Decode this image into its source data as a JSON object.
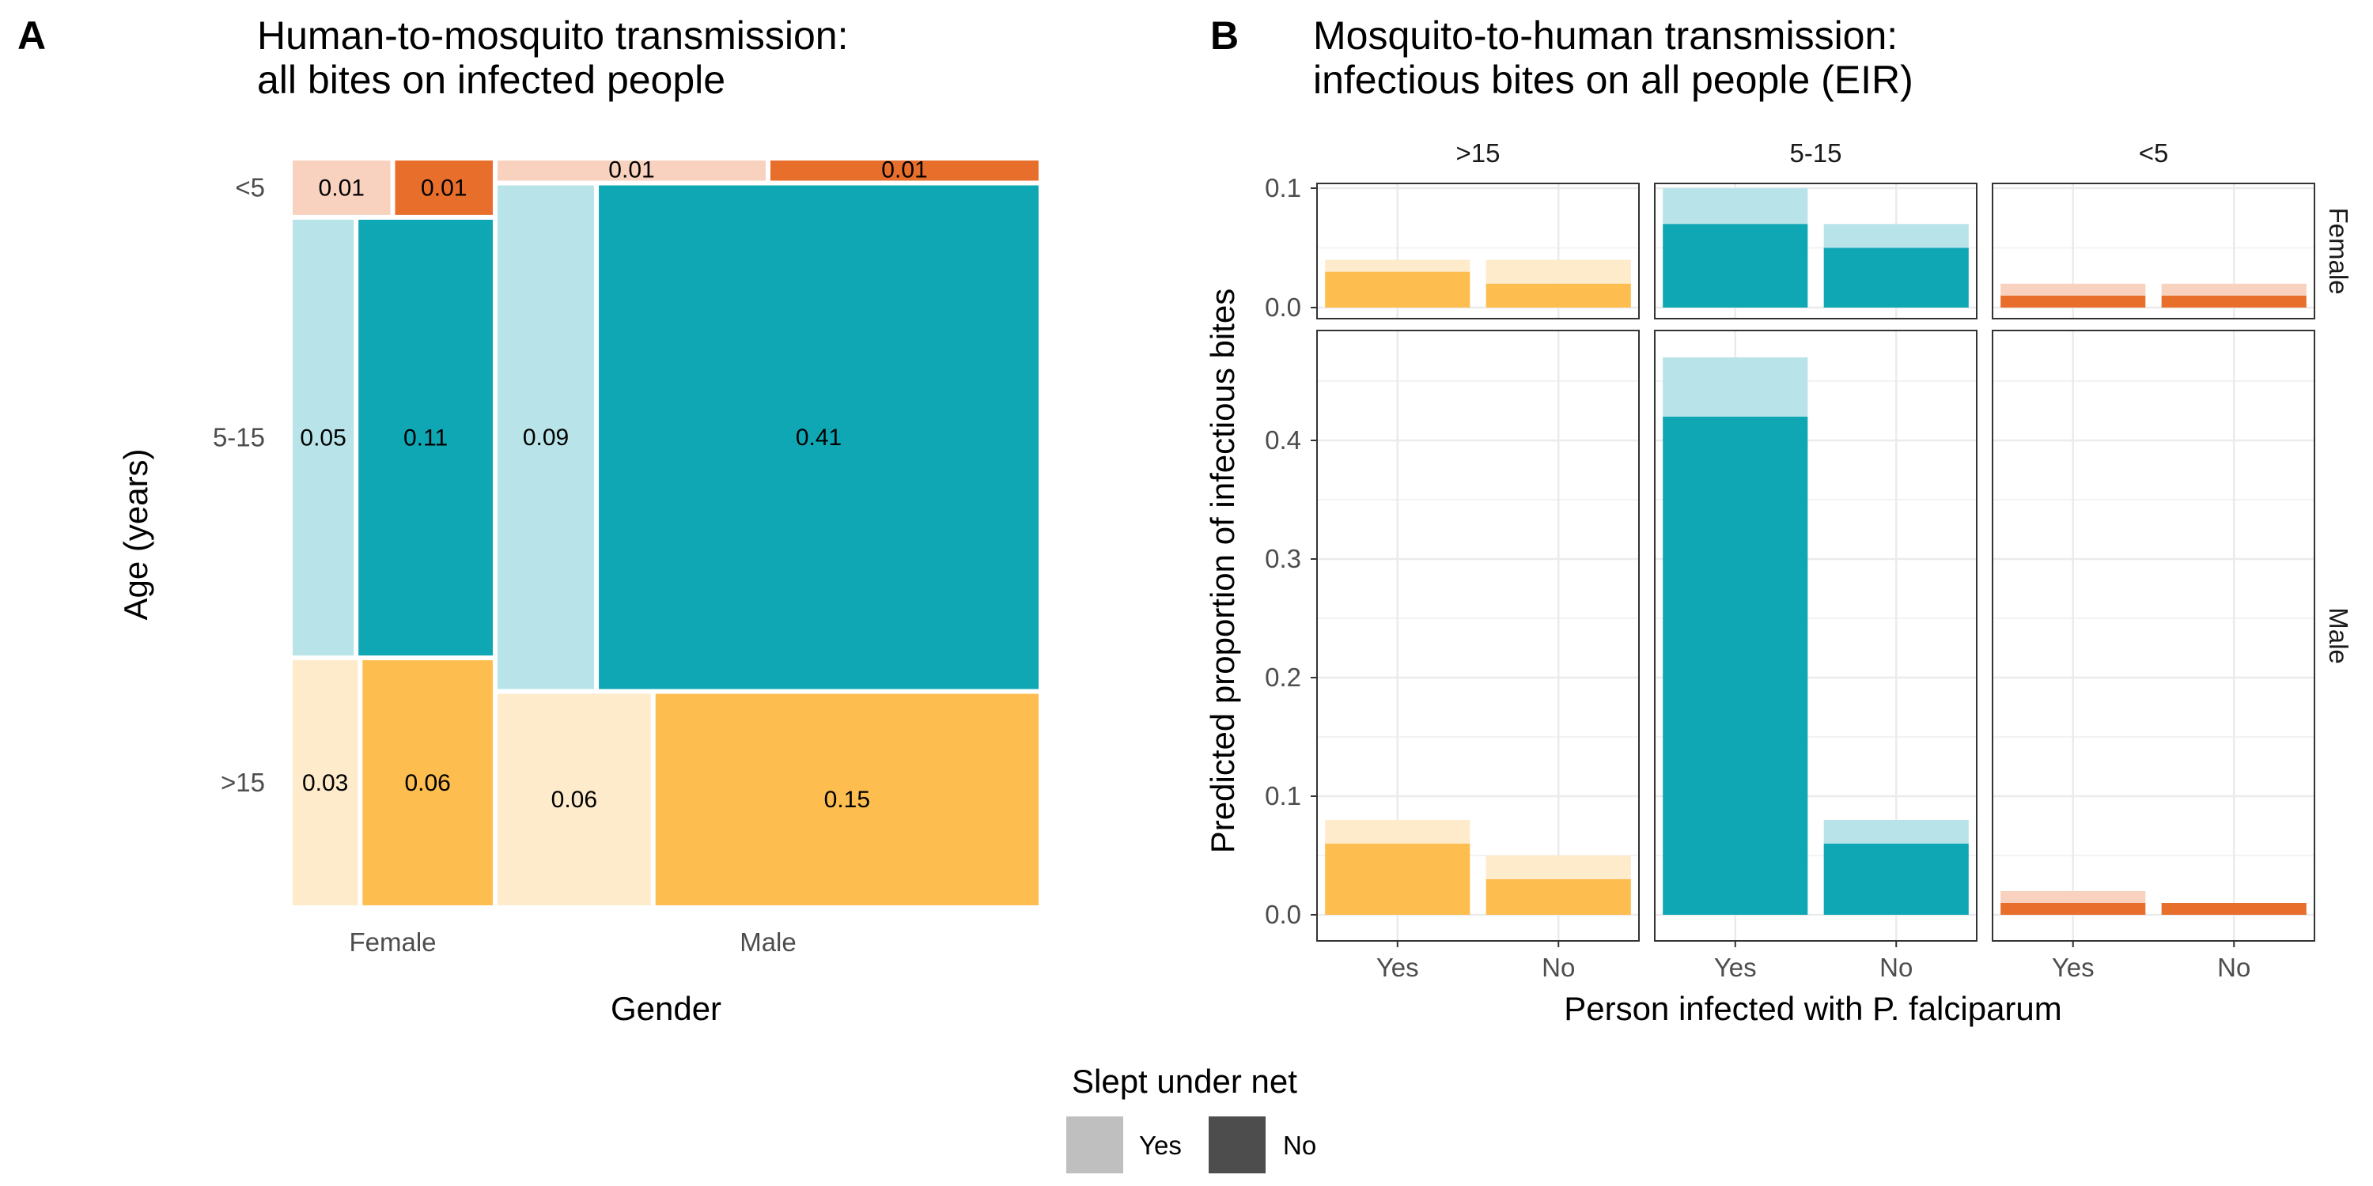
{
  "panel_a": {
    "letter": "A",
    "title_lines": [
      "Human-to-mosquito transmission:",
      "all bites on infected people"
    ],
    "xlabel": "Gender",
    "ylabel": "Age (years)"
  },
  "panel_b": {
    "letter": "B",
    "title_lines": [
      "Mosquito-to-human transmission:",
      "infectious bites on all people (EIR)"
    ],
    "xlabel": "Person infected with P. falciparum",
    "ylabel": "Predicted proportion of infectious bites"
  },
  "legend": {
    "title": "Slept under net",
    "items": [
      {
        "label": "Yes",
        "color": "#bfbfbf"
      },
      {
        "label": "No",
        "color": "#4d4d4d"
      }
    ]
  },
  "colors": {
    "<5": {
      "light": "#f9d2bf",
      "dark": "#e86e2c"
    },
    "5-15": {
      "light": "#b8e4e9",
      "dark": "#10a7b5"
    },
    ">15": {
      "light": "#feebcb",
      "dark": "#fdbd4f"
    }
  },
  "chart_data": [
    {
      "type": "mosaic",
      "xlabel": "Gender",
      "ylabel": "Age (years)",
      "genders": [
        "Female",
        "Male"
      ],
      "age_groups": [
        "<5",
        "5-15",
        ">15"
      ],
      "net_levels": [
        "Yes",
        "No"
      ],
      "cells": [
        {
          "gender": "Female",
          "age": "<5",
          "net": "Yes",
          "value": 0.01
        },
        {
          "gender": "Female",
          "age": "<5",
          "net": "No",
          "value": 0.01
        },
        {
          "gender": "Female",
          "age": "5-15",
          "net": "Yes",
          "value": 0.05
        },
        {
          "gender": "Female",
          "age": "5-15",
          "net": "No",
          "value": 0.11
        },
        {
          "gender": "Female",
          "age": ">15",
          "net": "Yes",
          "value": 0.03
        },
        {
          "gender": "Female",
          "age": ">15",
          "net": "No",
          "value": 0.06
        },
        {
          "gender": "Male",
          "age": "<5",
          "net": "Yes",
          "value": 0.01
        },
        {
          "gender": "Male",
          "age": "<5",
          "net": "No",
          "value": 0.01
        },
        {
          "gender": "Male",
          "age": "5-15",
          "net": "Yes",
          "value": 0.09
        },
        {
          "gender": "Male",
          "age": "5-15",
          "net": "No",
          "value": 0.41
        },
        {
          "gender": "Male",
          "age": ">15",
          "net": "Yes",
          "value": 0.06
        },
        {
          "gender": "Male",
          "age": ">15",
          "net": "No",
          "value": 0.15
        }
      ]
    },
    {
      "type": "bar",
      "stacked": true,
      "xlabel": "Person infected with P. falciparum",
      "ylabel": "Predicted proportion of infectious bites",
      "facet_cols": [
        ">15",
        "5-15",
        "<5"
      ],
      "facet_rows": [
        "Female",
        "Male"
      ],
      "categories": [
        "Yes",
        "No"
      ],
      "y_ticks_female": [
        0.0,
        0.1
      ],
      "y_ticks_male": [
        0.0,
        0.1,
        0.2,
        0.3,
        0.4
      ],
      "ylim_female": [
        0,
        0.1
      ],
      "ylim_male": [
        0,
        0.47
      ],
      "grid": true,
      "note": "dark segment = did not sleep under net, light segment on top = slept under net; bar height = total",
      "panels": [
        {
          "row": "Female",
          "col": ">15",
          "bars": [
            {
              "x": "Yes",
              "no_net": 0.03,
              "total": 0.04
            },
            {
              "x": "No",
              "no_net": 0.02,
              "total": 0.04
            }
          ]
        },
        {
          "row": "Female",
          "col": "5-15",
          "bars": [
            {
              "x": "Yes",
              "no_net": 0.07,
              "total": 0.1
            },
            {
              "x": "No",
              "no_net": 0.05,
              "total": 0.07
            }
          ]
        },
        {
          "row": "Female",
          "col": "<5",
          "bars": [
            {
              "x": "Yes",
              "no_net": 0.01,
              "total": 0.02
            },
            {
              "x": "No",
              "no_net": 0.01,
              "total": 0.02
            }
          ]
        },
        {
          "row": "Male",
          "col": ">15",
          "bars": [
            {
              "x": "Yes",
              "no_net": 0.06,
              "total": 0.08
            },
            {
              "x": "No",
              "no_net": 0.03,
              "total": 0.05
            }
          ]
        },
        {
          "row": "Male",
          "col": "5-15",
          "bars": [
            {
              "x": "Yes",
              "no_net": 0.42,
              "total": 0.47
            },
            {
              "x": "No",
              "no_net": 0.06,
              "total": 0.08
            }
          ]
        },
        {
          "row": "Male",
          "col": "<5",
          "bars": [
            {
              "x": "Yes",
              "no_net": 0.01,
              "total": 0.02
            },
            {
              "x": "No",
              "no_net": 0.01,
              "total": 0.01
            }
          ]
        }
      ]
    }
  ]
}
